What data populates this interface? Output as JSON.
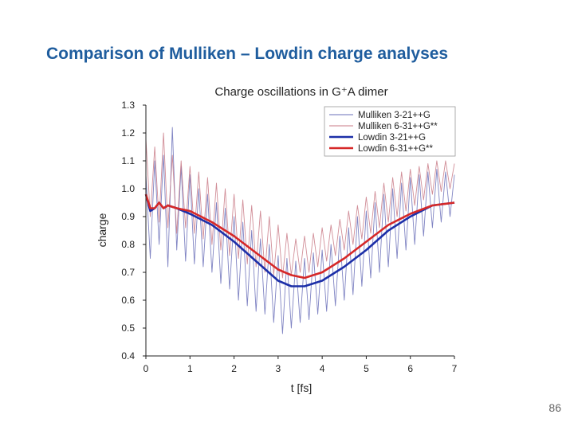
{
  "slide": {
    "title": "Comparison of Mulliken – Lowdin charge analyses",
    "page_number": "86"
  },
  "chart_data": {
    "type": "line",
    "title": "Charge oscillations in G⁺A dimer",
    "xlabel": "t [fs]",
    "ylabel": "charge",
    "xlim": [
      0,
      7
    ],
    "ylim": [
      0.4,
      1.3
    ],
    "xticks": [
      "0",
      "1",
      "2",
      "3",
      "4",
      "5",
      "6",
      "7"
    ],
    "yticks": [
      "0.4",
      "0.5",
      "0.6",
      "0.7",
      "0.8",
      "0.9",
      "1.0",
      "1.1",
      "1.2",
      "1.3"
    ],
    "grid": false,
    "legend_position": "top-right",
    "series": [
      {
        "name": "Mulliken 3-21++G",
        "color": "#6a6fb8",
        "style": "thin-oscillating",
        "x": [
          0,
          0.1,
          0.2,
          0.3,
          0.4,
          0.5,
          0.6,
          0.7,
          0.8,
          0.9,
          1.0,
          1.1,
          1.2,
          1.3,
          1.4,
          1.5,
          1.6,
          1.7,
          1.8,
          1.9,
          2.0,
          2.1,
          2.2,
          2.3,
          2.4,
          2.5,
          2.6,
          2.7,
          2.8,
          2.9,
          3.0,
          3.1,
          3.2,
          3.3,
          3.4,
          3.5,
          3.6,
          3.7,
          3.8,
          3.9,
          4.0,
          4.1,
          4.2,
          4.3,
          4.4,
          4.5,
          4.6,
          4.7,
          4.8,
          4.9,
          5.0,
          5.1,
          5.2,
          5.3,
          5.4,
          5.5,
          5.6,
          5.7,
          5.8,
          5.9,
          6.0,
          6.1,
          6.2,
          6.3,
          6.4,
          6.5,
          6.6,
          6.7,
          6.8,
          6.9,
          7.0
        ],
        "values": [
          1.05,
          0.75,
          1.1,
          0.8,
          1.12,
          0.72,
          1.22,
          0.78,
          1.08,
          0.74,
          1.05,
          0.73,
          1.0,
          0.72,
          0.98,
          0.7,
          0.95,
          0.66,
          0.93,
          0.64,
          0.9,
          0.6,
          0.88,
          0.58,
          0.85,
          0.56,
          0.82,
          0.55,
          0.8,
          0.52,
          0.76,
          0.48,
          0.75,
          0.5,
          0.74,
          0.52,
          0.75,
          0.53,
          0.77,
          0.55,
          0.78,
          0.56,
          0.8,
          0.58,
          0.83,
          0.6,
          0.86,
          0.62,
          0.9,
          0.65,
          0.92,
          0.68,
          0.95,
          0.7,
          0.98,
          0.72,
          1.0,
          0.75,
          1.02,
          0.78,
          1.04,
          0.8,
          1.05,
          0.83,
          1.06,
          0.86,
          1.07,
          0.88,
          1.06,
          0.9,
          1.05
        ]
      },
      {
        "name": "Mulliken 6-31++G**",
        "color": "#c97a86",
        "style": "thin-oscillating",
        "x": [
          0,
          0.1,
          0.2,
          0.3,
          0.4,
          0.5,
          0.6,
          0.7,
          0.8,
          0.9,
          1.0,
          1.1,
          1.2,
          1.3,
          1.4,
          1.5,
          1.6,
          1.7,
          1.8,
          1.9,
          2.0,
          2.1,
          2.2,
          2.3,
          2.4,
          2.5,
          2.6,
          2.7,
          2.8,
          2.9,
          3.0,
          3.1,
          3.2,
          3.3,
          3.4,
          3.5,
          3.6,
          3.7,
          3.8,
          3.9,
          4.0,
          4.1,
          4.2,
          4.3,
          4.4,
          4.5,
          4.6,
          4.7,
          4.8,
          4.9,
          5.0,
          5.1,
          5.2,
          5.3,
          5.4,
          5.5,
          5.6,
          5.7,
          5.8,
          5.9,
          6.0,
          6.1,
          6.2,
          6.3,
          6.4,
          6.5,
          6.6,
          6.7,
          6.8,
          6.9,
          7.0
        ],
        "values": [
          1.18,
          0.9,
          1.15,
          0.88,
          1.2,
          0.86,
          1.12,
          0.84,
          1.1,
          0.86,
          1.08,
          0.84,
          1.06,
          0.82,
          1.04,
          0.8,
          1.02,
          0.78,
          1.0,
          0.76,
          0.98,
          0.75,
          0.96,
          0.73,
          0.94,
          0.72,
          0.92,
          0.7,
          0.9,
          0.69,
          0.87,
          0.68,
          0.84,
          0.69,
          0.82,
          0.7,
          0.83,
          0.7,
          0.84,
          0.72,
          0.86,
          0.74,
          0.87,
          0.76,
          0.89,
          0.78,
          0.92,
          0.8,
          0.94,
          0.82,
          0.97,
          0.84,
          0.99,
          0.86,
          1.02,
          0.88,
          1.04,
          0.9,
          1.06,
          0.92,
          1.07,
          0.94,
          1.08,
          0.96,
          1.09,
          0.98,
          1.1,
          0.99,
          1.1,
          1.0,
          1.09
        ]
      },
      {
        "name": "Lowdin 3-21++G",
        "color": "#1c2fa8",
        "style": "thick-smooth",
        "x": [
          0,
          0.1,
          0.2,
          0.3,
          0.4,
          0.5,
          0.7,
          1.0,
          1.5,
          2.0,
          2.5,
          3.0,
          3.3,
          3.6,
          4.0,
          4.5,
          5.0,
          5.5,
          6.0,
          6.5,
          7.0
        ],
        "values": [
          0.98,
          0.92,
          0.93,
          0.95,
          0.93,
          0.94,
          0.93,
          0.91,
          0.87,
          0.81,
          0.74,
          0.67,
          0.65,
          0.65,
          0.67,
          0.72,
          0.78,
          0.85,
          0.9,
          0.94,
          0.95
        ]
      },
      {
        "name": "Lowdin 6-31++G**",
        "color": "#d62828",
        "style": "thick-smooth",
        "x": [
          0,
          0.1,
          0.2,
          0.3,
          0.4,
          0.5,
          0.7,
          1.0,
          1.5,
          2.0,
          2.5,
          3.0,
          3.3,
          3.6,
          4.0,
          4.5,
          5.0,
          5.5,
          6.0,
          6.5,
          7.0
        ],
        "values": [
          0.98,
          0.93,
          0.93,
          0.95,
          0.93,
          0.94,
          0.93,
          0.92,
          0.88,
          0.83,
          0.77,
          0.71,
          0.69,
          0.68,
          0.7,
          0.75,
          0.81,
          0.87,
          0.91,
          0.94,
          0.95
        ]
      }
    ]
  }
}
